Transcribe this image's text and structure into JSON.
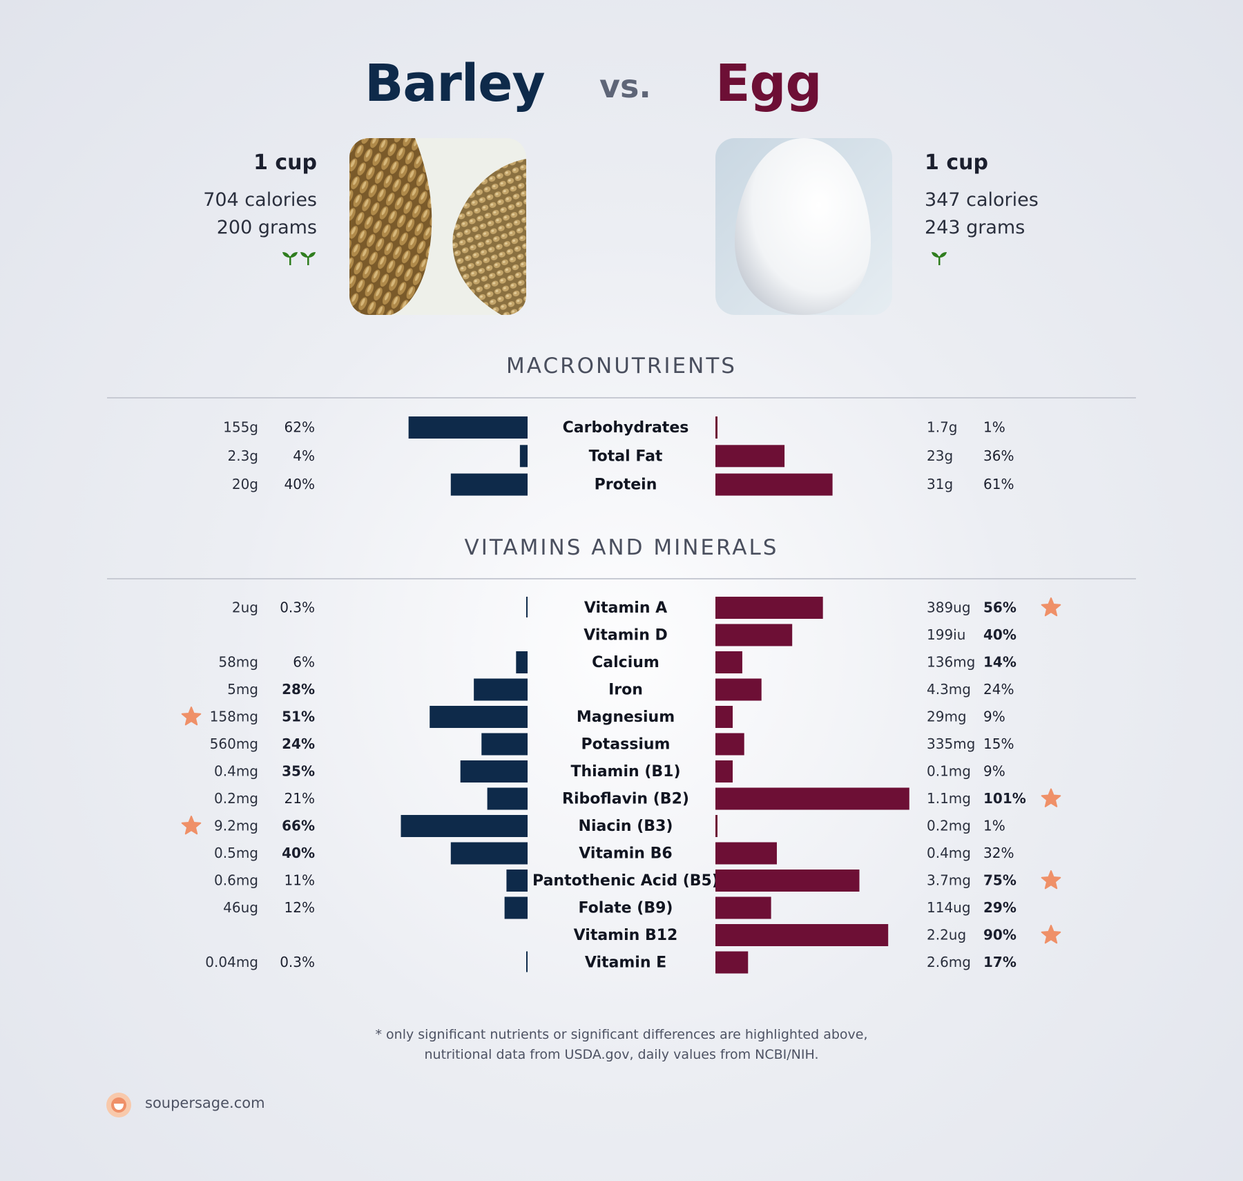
{
  "header": {
    "left_name": "Barley",
    "vs": "vs.",
    "right_name": "Egg"
  },
  "left_food": {
    "serving": "1 cup",
    "calories": "704 calories",
    "grams": "200 grams",
    "sprouts": 2,
    "image": "barley-grains-photo"
  },
  "right_food": {
    "serving": "1 cup",
    "calories": "347 calories",
    "grams": "243 grams",
    "sprouts": 1,
    "image": "egg-photo"
  },
  "sections": {
    "macros_title": "MACRONUTRIENTS",
    "vitamins_title": "VITAMINS AND MINERALS"
  },
  "colors": {
    "left": "#0e2a4a",
    "right": "#6d0f35",
    "star": "#ef9068",
    "sprout": "#2f7d1e"
  },
  "chart_data": [
    {
      "type": "bar",
      "name": "",
      "orientation": "horizontal-butterfly",
      "categories": [
        "Carbohydrates",
        "Total Fat",
        "Protein"
      ],
      "series": [
        {
          "name": "Barley",
          "amounts": [
            "155g",
            "2.3g",
            "20g"
          ],
          "percent_labels": [
            "62%",
            "4%",
            "40%"
          ],
          "values": [
            62,
            4,
            40
          ],
          "bold": [
            false,
            false,
            false
          ],
          "stars": [
            false,
            false,
            false
          ]
        },
        {
          "name": "Egg",
          "amounts": [
            "1.7g",
            "23g",
            "31g"
          ],
          "percent_labels": [
            "1%",
            "36%",
            "61%"
          ],
          "values": [
            1,
            36,
            61
          ],
          "bold": [
            false,
            false,
            false
          ],
          "stars": [
            false,
            false,
            false
          ]
        }
      ],
      "xlim": [
        0,
        100
      ]
    },
    {
      "type": "bar",
      "name": "",
      "orientation": "horizontal-butterfly",
      "categories": [
        "Vitamin A",
        "Vitamin D",
        "Calcium",
        "Iron",
        "Magnesium",
        "Potassium",
        "Thiamin (B1)",
        "Riboflavin (B2)",
        "Niacin (B3)",
        "Vitamin B6",
        "Pantothenic Acid (B5)",
        "Folate (B9)",
        "Vitamin B12",
        "Vitamin E"
      ],
      "series": [
        {
          "name": "Barley",
          "amounts": [
            "2ug",
            "",
            "58mg",
            "5mg",
            "158mg",
            "560mg",
            "0.4mg",
            "0.2mg",
            "9.2mg",
            "0.5mg",
            "0.6mg",
            "46ug",
            "",
            "0.04mg"
          ],
          "percent_labels": [
            "0.3%",
            "",
            "6%",
            "28%",
            "51%",
            "24%",
            "35%",
            "21%",
            "66%",
            "40%",
            "11%",
            "12%",
            "",
            "0.3%"
          ],
          "values": [
            0.3,
            0,
            6,
            28,
            51,
            24,
            35,
            21,
            66,
            40,
            11,
            12,
            0,
            0.3
          ],
          "bold": [
            false,
            false,
            false,
            true,
            true,
            true,
            true,
            false,
            true,
            true,
            false,
            false,
            false,
            false
          ],
          "stars": [
            false,
            false,
            false,
            false,
            true,
            false,
            false,
            false,
            true,
            false,
            false,
            false,
            false,
            false
          ]
        },
        {
          "name": "Egg",
          "amounts": [
            "389ug",
            "199iu",
            "136mg",
            "4.3mg",
            "29mg",
            "335mg",
            "0.1mg",
            "1.1mg",
            "0.2mg",
            "0.4mg",
            "3.7mg",
            "114ug",
            "2.2ug",
            "2.6mg"
          ],
          "percent_labels": [
            "56%",
            "40%",
            "14%",
            "24%",
            "9%",
            "15%",
            "9%",
            "101%",
            "1%",
            "32%",
            "75%",
            "29%",
            "90%",
            "17%"
          ],
          "values": [
            56,
            40,
            14,
            24,
            9,
            15,
            9,
            101,
            1,
            32,
            75,
            29,
            90,
            17
          ],
          "bold": [
            true,
            true,
            true,
            false,
            false,
            false,
            false,
            true,
            false,
            false,
            true,
            true,
            true,
            true
          ],
          "stars": [
            true,
            false,
            false,
            false,
            false,
            false,
            false,
            true,
            false,
            false,
            true,
            false,
            true,
            false
          ]
        }
      ],
      "xlim": [
        0,
        100
      ]
    }
  ],
  "footer": {
    "note_line1": "* only significant nutrients or significant differences are highlighted above,",
    "note_line2": "nutritional data from USDA.gov, daily values from NCBI/NIH.",
    "brand": "soupersage.com"
  }
}
